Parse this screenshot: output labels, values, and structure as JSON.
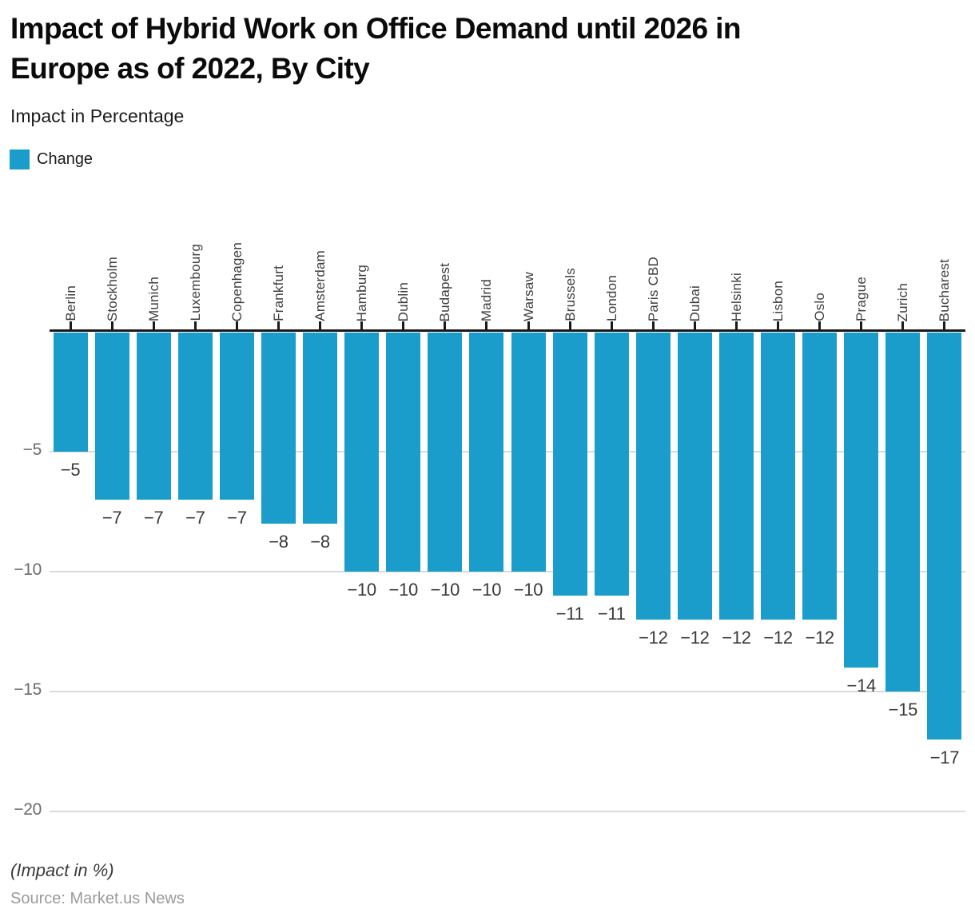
{
  "header": {
    "title": "Impact of Hybrid Work on Office Demand until 2026 in\nEurope as of 2022, By City",
    "subtitle": "Impact in Percentage"
  },
  "legend": {
    "label": "Change"
  },
  "colors": {
    "bar": "#1A9DCA",
    "axis": "#1a1a1a",
    "grid": "#dadada"
  },
  "chart_data": {
    "type": "bar",
    "title": "Impact of Hybrid Work on Office Demand until 2026 in Europe as of 2022, By City",
    "subtitle": "Impact in Percentage",
    "categories": [
      "Berlin",
      "Stockholm",
      "Munich",
      "Luxembourg",
      "Copenhagen",
      "Frankfurt",
      "Amsterdam",
      "Hamburg",
      "Dublin",
      "Budapest",
      "Madrid",
      "Warsaw",
      "Brussels",
      "London",
      "Paris CBD",
      "Dubai",
      "Helsinki",
      "Lisbon",
      "Oslo",
      "Prague",
      "Zurich",
      "Bucharest"
    ],
    "values": [
      -5,
      -7,
      -7,
      -7,
      -7,
      -8,
      -8,
      -10,
      -10,
      -10,
      -10,
      -10,
      -11,
      -11,
      -12,
      -12,
      -12,
      -12,
      -12,
      -14,
      -15,
      -17
    ],
    "value_labels": [
      "−5",
      "−7",
      "−7",
      "−7",
      "−7",
      "−8",
      "−8",
      "−10",
      "−10",
      "−10",
      "−10",
      "−10",
      "−11",
      "−11",
      "−12",
      "−12",
      "−12",
      "−12",
      "−12",
      "−14",
      "−15",
      "−17"
    ],
    "series_name": "Change",
    "xlabel": "",
    "ylabel": "Impact in Percentage",
    "ylim": [
      -20,
      0
    ],
    "yticks": [
      -5,
      -10,
      -15,
      -20
    ],
    "ytick_labels": [
      "−5",
      "−10",
      "−15",
      "−20"
    ],
    "grid": true,
    "legend_position": "top-left"
  },
  "footer": {
    "note": "(Impact in %)",
    "source": "Source: Market.us News"
  }
}
